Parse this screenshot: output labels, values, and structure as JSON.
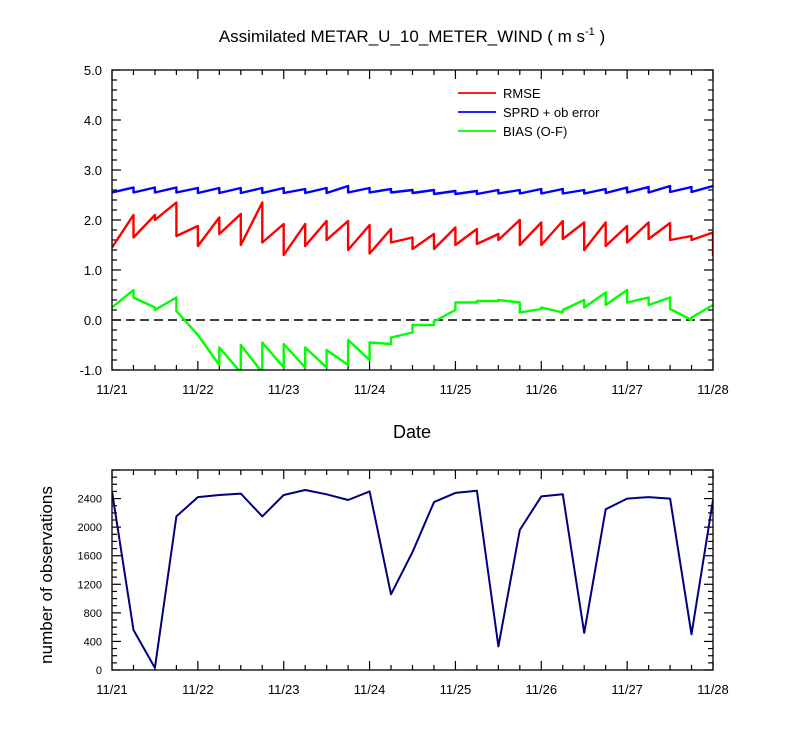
{
  "title": {
    "main": "Assimilated METAR_U_10_METER_WIND ( m s",
    "superscript": "-1",
    "close": " )"
  },
  "colors": {
    "rmse": "#ff0000",
    "sprd": "#0000ff",
    "bias": "#00ff00",
    "zero_line": "#000000",
    "obs": "#000080"
  },
  "chart_data": [
    {
      "type": "line",
      "title": "Assimilated METAR_U_10_METER_WIND ( m s-1 )",
      "xlabel": "Date",
      "ylabel": "",
      "xlim": [
        0,
        7
      ],
      "ylim": [
        -1.0,
        5.0
      ],
      "x_tick_labels": [
        "11/21",
        "11/22",
        "11/23",
        "11/24",
        "11/25",
        "11/26",
        "11/27",
        "11/28"
      ],
      "y_tick_labels": [
        "-1.0",
        "0.0",
        "1.0",
        "2.0",
        "3.0",
        "4.0",
        "5.0"
      ],
      "x_units": "days since 11/21",
      "grid": false,
      "legend_position": "top-right",
      "reference_line": {
        "y": 0.0,
        "style": "dashed"
      },
      "series": [
        {
          "name": "RMSE",
          "color": "#ff0000",
          "points": [
            [
              0,
              1.45
            ],
            [
              0.25,
              2.1
            ],
            [
              0.25,
              1.65
            ],
            [
              0.5,
              2.1
            ],
            [
              0.5,
              2.0
            ],
            [
              0.75,
              2.35
            ],
            [
              0.75,
              1.68
            ],
            [
              1.0,
              1.88
            ],
            [
              1.0,
              1.48
            ],
            [
              1.25,
              2.05
            ],
            [
              1.25,
              1.72
            ],
            [
              1.5,
              2.12
            ],
            [
              1.5,
              1.5
            ],
            [
              1.75,
              2.35
            ],
            [
              1.75,
              1.55
            ],
            [
              2.0,
              1.92
            ],
            [
              2.0,
              1.3
            ],
            [
              2.25,
              1.92
            ],
            [
              2.25,
              1.48
            ],
            [
              2.5,
              1.98
            ],
            [
              2.5,
              1.6
            ],
            [
              2.75,
              1.98
            ],
            [
              2.75,
              1.4
            ],
            [
              3.0,
              1.9
            ],
            [
              3.0,
              1.33
            ],
            [
              3.25,
              1.82
            ],
            [
              3.25,
              1.55
            ],
            [
              3.5,
              1.65
            ],
            [
              3.5,
              1.42
            ],
            [
              3.75,
              1.72
            ],
            [
              3.75,
              1.42
            ],
            [
              4.0,
              1.85
            ],
            [
              4.0,
              1.5
            ],
            [
              4.25,
              1.82
            ],
            [
              4.25,
              1.52
            ],
            [
              4.5,
              1.72
            ],
            [
              4.5,
              1.6
            ],
            [
              4.75,
              2.0
            ],
            [
              4.75,
              1.5
            ],
            [
              5.0,
              1.95
            ],
            [
              5.0,
              1.5
            ],
            [
              5.25,
              1.98
            ],
            [
              5.25,
              1.62
            ],
            [
              5.5,
              1.95
            ],
            [
              5.5,
              1.4
            ],
            [
              5.75,
              1.95
            ],
            [
              5.75,
              1.48
            ],
            [
              6.0,
              1.88
            ],
            [
              6.0,
              1.55
            ],
            [
              6.25,
              1.95
            ],
            [
              6.25,
              1.62
            ],
            [
              6.5,
              1.94
            ],
            [
              6.5,
              1.6
            ],
            [
              6.75,
              1.68
            ],
            [
              6.75,
              1.6
            ],
            [
              7.0,
              1.75
            ],
            [
              7.0,
              1.28
            ]
          ]
        },
        {
          "name": "SPRD + ob error",
          "color": "#0000ff",
          "points": [
            [
              0,
              2.55
            ],
            [
              0.25,
              2.65
            ],
            [
              0.25,
              2.55
            ],
            [
              0.5,
              2.65
            ],
            [
              0.5,
              2.55
            ],
            [
              0.75,
              2.65
            ],
            [
              0.75,
              2.55
            ],
            [
              1.0,
              2.64
            ],
            [
              1.0,
              2.54
            ],
            [
              1.25,
              2.64
            ],
            [
              1.25,
              2.54
            ],
            [
              1.5,
              2.64
            ],
            [
              1.5,
              2.54
            ],
            [
              1.75,
              2.64
            ],
            [
              1.75,
              2.54
            ],
            [
              2.0,
              2.64
            ],
            [
              2.0,
              2.54
            ],
            [
              2.25,
              2.62
            ],
            [
              2.25,
              2.54
            ],
            [
              2.5,
              2.64
            ],
            [
              2.5,
              2.54
            ],
            [
              2.75,
              2.68
            ],
            [
              2.75,
              2.55
            ],
            [
              3.0,
              2.64
            ],
            [
              3.0,
              2.55
            ],
            [
              3.25,
              2.62
            ],
            [
              3.25,
              2.55
            ],
            [
              3.5,
              2.6
            ],
            [
              3.5,
              2.54
            ],
            [
              3.75,
              2.6
            ],
            [
              3.75,
              2.52
            ],
            [
              4.0,
              2.58
            ],
            [
              4.0,
              2.52
            ],
            [
              4.25,
              2.58
            ],
            [
              4.25,
              2.52
            ],
            [
              4.5,
              2.6
            ],
            [
              4.5,
              2.53
            ],
            [
              4.75,
              2.6
            ],
            [
              4.75,
              2.53
            ],
            [
              5.0,
              2.62
            ],
            [
              5.0,
              2.53
            ],
            [
              5.25,
              2.62
            ],
            [
              5.25,
              2.53
            ],
            [
              5.5,
              2.6
            ],
            [
              5.5,
              2.53
            ],
            [
              5.75,
              2.62
            ],
            [
              5.75,
              2.54
            ],
            [
              6.0,
              2.65
            ],
            [
              6.0,
              2.55
            ],
            [
              6.25,
              2.66
            ],
            [
              6.25,
              2.55
            ],
            [
              6.5,
              2.68
            ],
            [
              6.5,
              2.56
            ],
            [
              6.75,
              2.66
            ],
            [
              6.75,
              2.56
            ],
            [
              7.0,
              2.68
            ]
          ]
        },
        {
          "name": "BIAS (O-F)",
          "color": "#00ff00",
          "points": [
            [
              0,
              0.25
            ],
            [
              0.25,
              0.6
            ],
            [
              0.25,
              0.45
            ],
            [
              0.5,
              0.25
            ],
            [
              0.5,
              0.2
            ],
            [
              0.75,
              0.45
            ],
            [
              0.75,
              0.18
            ],
            [
              1.0,
              -0.3
            ],
            [
              1.0,
              -0.3
            ],
            [
              1.25,
              -0.9
            ],
            [
              1.25,
              -0.55
            ],
            [
              1.5,
              -1.05
            ],
            [
              1.5,
              -0.5
            ],
            [
              1.75,
              -1.05
            ],
            [
              1.75,
              -0.45
            ],
            [
              2.0,
              -0.95
            ],
            [
              2.0,
              -0.48
            ],
            [
              2.25,
              -0.95
            ],
            [
              2.25,
              -0.55
            ],
            [
              2.5,
              -0.95
            ],
            [
              2.5,
              -0.6
            ],
            [
              2.75,
              -0.9
            ],
            [
              2.75,
              -0.4
            ],
            [
              3.0,
              -0.8
            ],
            [
              3.0,
              -0.45
            ],
            [
              3.25,
              -0.48
            ],
            [
              3.25,
              -0.35
            ],
            [
              3.5,
              -0.25
            ],
            [
              3.5,
              -0.1
            ],
            [
              3.75,
              -0.1
            ],
            [
              3.75,
              -0.03
            ],
            [
              4.0,
              0.2
            ],
            [
              4.0,
              0.35
            ],
            [
              4.25,
              0.35
            ],
            [
              4.25,
              0.38
            ],
            [
              4.5,
              0.38
            ],
            [
              4.5,
              0.4
            ],
            [
              4.75,
              0.35
            ],
            [
              4.75,
              0.15
            ],
            [
              5.0,
              0.22
            ],
            [
              5.0,
              0.25
            ],
            [
              5.25,
              0.15
            ],
            [
              5.25,
              0.2
            ],
            [
              5.5,
              0.4
            ],
            [
              5.5,
              0.25
            ],
            [
              5.75,
              0.55
            ],
            [
              5.75,
              0.3
            ],
            [
              6.0,
              0.6
            ],
            [
              6.0,
              0.35
            ],
            [
              6.25,
              0.45
            ],
            [
              6.25,
              0.3
            ],
            [
              6.5,
              0.45
            ],
            [
              6.5,
              0.22
            ],
            [
              6.75,
              0.0
            ],
            [
              6.75,
              0.05
            ],
            [
              7.0,
              0.3
            ]
          ]
        }
      ]
    },
    {
      "type": "line",
      "title": "",
      "xlabel": "",
      "ylabel": "number of observations",
      "xlim": [
        0,
        7
      ],
      "ylim": [
        0,
        2800
      ],
      "x_tick_labels": [
        "11/21",
        "11/22",
        "11/23",
        "11/24",
        "11/25",
        "11/26",
        "11/27",
        "11/28"
      ],
      "y_tick_labels": [
        "0",
        "400",
        "800",
        "1200",
        "1600",
        "2000",
        "2400"
      ],
      "x_units": "days since 11/21",
      "grid": false,
      "series": [
        {
          "name": "",
          "color": "#000080",
          "points": [
            [
              0,
              2500
            ],
            [
              0.25,
              560
            ],
            [
              0.5,
              30
            ],
            [
              0.75,
              2150
            ],
            [
              1.0,
              2420
            ],
            [
              1.25,
              2450
            ],
            [
              1.5,
              2470
            ],
            [
              1.75,
              2150
            ],
            [
              2.0,
              2450
            ],
            [
              2.25,
              2520
            ],
            [
              2.5,
              2460
            ],
            [
              2.75,
              2380
            ],
            [
              3.0,
              2500
            ],
            [
              3.25,
              1060
            ],
            [
              3.5,
              1650
            ],
            [
              3.75,
              2350
            ],
            [
              4.0,
              2480
            ],
            [
              4.25,
              2510
            ],
            [
              4.5,
              330
            ],
            [
              4.75,
              1960
            ],
            [
              5.0,
              2430
            ],
            [
              5.25,
              2460
            ],
            [
              5.5,
              520
            ],
            [
              5.75,
              2250
            ],
            [
              6.0,
              2400
            ],
            [
              6.25,
              2420
            ],
            [
              6.5,
              2400
            ],
            [
              6.75,
              500
            ],
            [
              7.0,
              2380
            ]
          ]
        }
      ]
    }
  ]
}
